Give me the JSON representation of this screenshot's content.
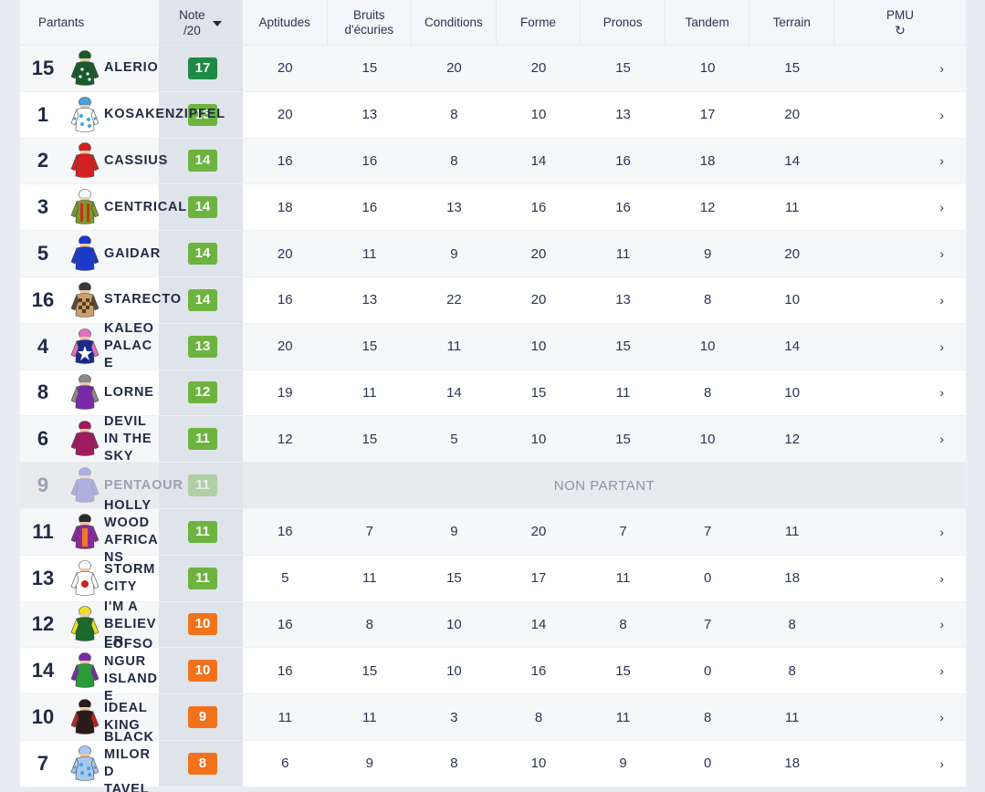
{
  "header": {
    "partants": "Partants",
    "note": [
      "Note",
      "/20"
    ],
    "criteria": [
      [
        "Aptitudes"
      ],
      [
        "Bruits",
        "d'écuries"
      ],
      [
        "Conditions"
      ],
      [
        "Forme"
      ],
      [
        "Pronos"
      ],
      [
        "Tandem"
      ],
      [
        "Terrain"
      ]
    ],
    "pmu": "PMU",
    "refresh_icon": "↻"
  },
  "non_partant_label": "NON PARTANT",
  "colors": {
    "green": "#1e8a45",
    "lightgreen": "#6db33f",
    "orange": "#f0731c",
    "alt_row": "#f6f7f9",
    "note_col": "#dfe3ea"
  },
  "rows": [
    {
      "num": "15",
      "name": "ALERIO",
      "note": "17",
      "level": "green",
      "scores": [
        "20",
        "15",
        "20",
        "20",
        "15",
        "10",
        "15"
      ],
      "silk": {
        "body": "#1a5a2a",
        "sleeve": "#1a5a2a",
        "cap": "#1a5a2a",
        "pattern": "dots"
      }
    },
    {
      "num": "1",
      "name": "KOSAKENZIPFEL",
      "note": "15",
      "level": "lightgreen",
      "scores": [
        "20",
        "13",
        "8",
        "10",
        "13",
        "17",
        "20"
      ],
      "silk": {
        "body": "#ffffff",
        "sleeve": "#ffffff",
        "cap": "#4aa0d8",
        "pattern": "spots"
      }
    },
    {
      "num": "2",
      "name": "CASSIUS",
      "note": "14",
      "level": "lightgreen",
      "scores": [
        "16",
        "16",
        "8",
        "14",
        "16",
        "18",
        "14"
      ],
      "silk": {
        "body": "#d42020",
        "sleeve": "#d42020",
        "cap": "#d42020",
        "pattern": "none"
      }
    },
    {
      "num": "3",
      "name": "CENTRICAL",
      "note": "14",
      "level": "lightgreen",
      "scores": [
        "18",
        "16",
        "13",
        "16",
        "16",
        "12",
        "11"
      ],
      "silk": {
        "body": "#7a9a2a",
        "sleeve": "#7a9a2a",
        "cap": "#ffffff",
        "pattern": "stripes"
      }
    },
    {
      "num": "5",
      "name": "GAIDAR",
      "note": "14",
      "level": "lightgreen",
      "scores": [
        "20",
        "11",
        "9",
        "20",
        "11",
        "9",
        "20"
      ],
      "silk": {
        "body": "#1a3ac8",
        "sleeve": "#1a3ac8",
        "cap": "#1a3ac8",
        "pattern": "none"
      }
    },
    {
      "num": "16",
      "name": "STARECTO",
      "note": "14",
      "level": "lightgreen",
      "scores": [
        "16",
        "13",
        "22",
        "20",
        "13",
        "8",
        "10"
      ],
      "silk": {
        "body": "#c8a070",
        "sleeve": "#5a4a3a",
        "cap": "#3a3a3a",
        "pattern": "check"
      }
    },
    {
      "num": "4",
      "name": "KALEO PALACE",
      "note": "13",
      "level": "lightgreen",
      "scores": [
        "20",
        "15",
        "11",
        "10",
        "15",
        "10",
        "14"
      ],
      "silk": {
        "body": "#1a2a8a",
        "sleeve": "#e070c0",
        "cap": "#e070c0",
        "pattern": "star"
      }
    },
    {
      "num": "8",
      "name": "LORNE",
      "note": "12",
      "level": "lightgreen",
      "scores": [
        "19",
        "11",
        "14",
        "15",
        "11",
        "8",
        "10"
      ],
      "silk": {
        "body": "#7a2aa8",
        "sleeve": "#8a8a8a",
        "cap": "#8a8a8a",
        "pattern": "none"
      }
    },
    {
      "num": "6",
      "name": "DEVIL IN THE SKY",
      "note": "11",
      "level": "lightgreen",
      "scores": [
        "12",
        "15",
        "5",
        "10",
        "15",
        "10",
        "12"
      ],
      "silk": {
        "body": "#a01a60",
        "sleeve": "#a01a60",
        "cap": "#a01a60",
        "pattern": "none"
      }
    },
    {
      "num": "9",
      "name": "PENTAOUR",
      "note": "11",
      "level": "lightgreen",
      "np": true,
      "silk": {
        "body": "#6a6ad0",
        "sleeve": "#6a6ad0",
        "cap": "#6a6ad0",
        "pattern": "none"
      }
    },
    {
      "num": "11",
      "name": "HOLLYWOOD AFRICANS",
      "note": "11",
      "level": "lightgreen",
      "scores": [
        "16",
        "7",
        "9",
        "20",
        "7",
        "7",
        "11"
      ],
      "silk": {
        "body": "#8a2a9a",
        "sleeve": "#8a2a9a",
        "cap": "#2a2a2a",
        "pattern": "orange"
      }
    },
    {
      "num": "13",
      "name": "STORM CITY",
      "note": "11",
      "level": "lightgreen",
      "scores": [
        "5",
        "11",
        "15",
        "17",
        "11",
        "0",
        "18"
      ],
      "silk": {
        "body": "#ffffff",
        "sleeve": "#ffffff",
        "cap": "#ffffff",
        "pattern": "reddot"
      }
    },
    {
      "num": "12",
      "name": "I'M A BELIEVER",
      "note": "10",
      "level": "orange",
      "scores": [
        "16",
        "8",
        "10",
        "14",
        "8",
        "7",
        "8"
      ],
      "silk": {
        "body": "#1a6a2a",
        "sleeve": "#e8e020",
        "cap": "#e8e020",
        "pattern": "none"
      }
    },
    {
      "num": "14",
      "name": "LOFSONGUR ISLANDE",
      "note": "10",
      "level": "orange",
      "scores": [
        "16",
        "15",
        "10",
        "16",
        "15",
        "0",
        "8"
      ],
      "silk": {
        "body": "#2a9a3a",
        "sleeve": "#7a2aa8",
        "cap": "#7a2aa8",
        "pattern": "none"
      }
    },
    {
      "num": "10",
      "name": "IDEAL KING",
      "note": "9",
      "level": "orange",
      "scores": [
        "11",
        "11",
        "3",
        "8",
        "11",
        "8",
        "11"
      ],
      "silk": {
        "body": "#2a1a1a",
        "sleeve": "#c02020",
        "cap": "#2a1a1a",
        "pattern": "none"
      }
    },
    {
      "num": "7",
      "name": "BLACK MILORD TAVEL",
      "note": "8",
      "level": "orange",
      "scores": [
        "6",
        "9",
        "8",
        "10",
        "9",
        "0",
        "18"
      ],
      "silk": {
        "body": "#a8c8f0",
        "sleeve": "#a8c8f0",
        "cap": "#a8c8f0",
        "pattern": "spots"
      }
    }
  ],
  "row_arrow": "›"
}
